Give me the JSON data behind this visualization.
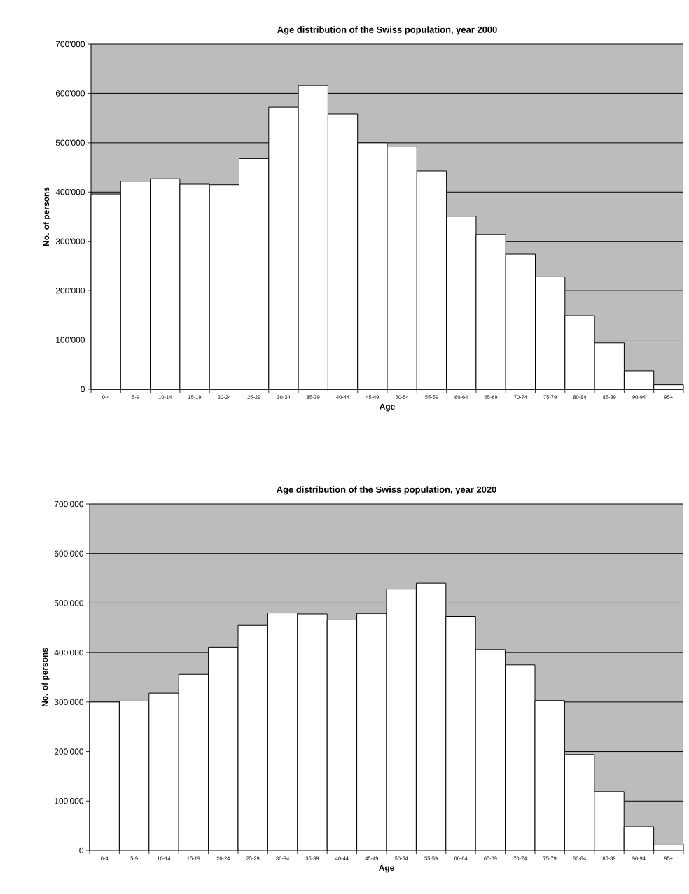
{
  "chart_data": [
    {
      "type": "bar",
      "title": "Age distribution of the Swiss population, year 2000",
      "xlabel": "Age",
      "ylabel": "No. of persons",
      "categories": [
        "0-4",
        "5-9",
        "10-14",
        "15-19",
        "20-24",
        "25-29",
        "30-34",
        "35-39",
        "40-44",
        "45-49",
        "50-54",
        "55-59",
        "60-64",
        "65-69",
        "70-74",
        "75-79",
        "80-84",
        "85-89",
        "90-94",
        "95+"
      ],
      "values": [
        396000,
        422000,
        427000,
        416000,
        415000,
        468000,
        572000,
        616000,
        558000,
        500000,
        493000,
        443000,
        351000,
        314000,
        274000,
        228000,
        149000,
        94000,
        37000,
        9000
      ],
      "color": "#ffffff",
      "ylim": [
        0,
        700000
      ],
      "yticks": [
        0,
        {
          "value": 100000,
          "label": "100'000"
        },
        {
          "value": 200000,
          "label": "200'000"
        },
        {
          "value": 300000,
          "label": "300'000"
        },
        {
          "value": 400000,
          "label": "400'000"
        },
        {
          "value": 500000,
          "label": "500'000"
        },
        {
          "value": 600000,
          "label": "600'000"
        },
        {
          "value": 700000,
          "label": "700'000"
        }
      ],
      "grid": "y"
    },
    {
      "type": "bar",
      "title": "Age distribution of the Swiss population, year 2020",
      "xlabel": "Age",
      "ylabel": "No. of persons",
      "categories": [
        "0-4",
        "5-9",
        "10-14",
        "15-19",
        "20-24",
        "25-29",
        "30-34",
        "35-39",
        "40-44",
        "45-49",
        "50-54",
        "55-59",
        "60-64",
        "65-69",
        "70-74",
        "75-79",
        "80-84",
        "85-89",
        "90-94",
        "95+"
      ],
      "values": [
        300000,
        302000,
        318000,
        356000,
        411000,
        455000,
        480000,
        478000,
        466000,
        479000,
        528000,
        540000,
        473000,
        406000,
        375000,
        303000,
        194000,
        119000,
        48000,
        13000
      ],
      "color": "#ffffff",
      "ylim": [
        0,
        700000
      ],
      "yticks": [
        0,
        {
          "value": 100000,
          "label": "100'000"
        },
        {
          "value": 200000,
          "label": "200'000"
        },
        {
          "value": 300000,
          "label": "300'000"
        },
        {
          "value": 400000,
          "label": "400'000"
        },
        {
          "value": 500000,
          "label": "500'000"
        },
        {
          "value": 600000,
          "label": "600'000"
        },
        {
          "value": 700000,
          "label": "700'000"
        }
      ],
      "grid": "y"
    }
  ]
}
